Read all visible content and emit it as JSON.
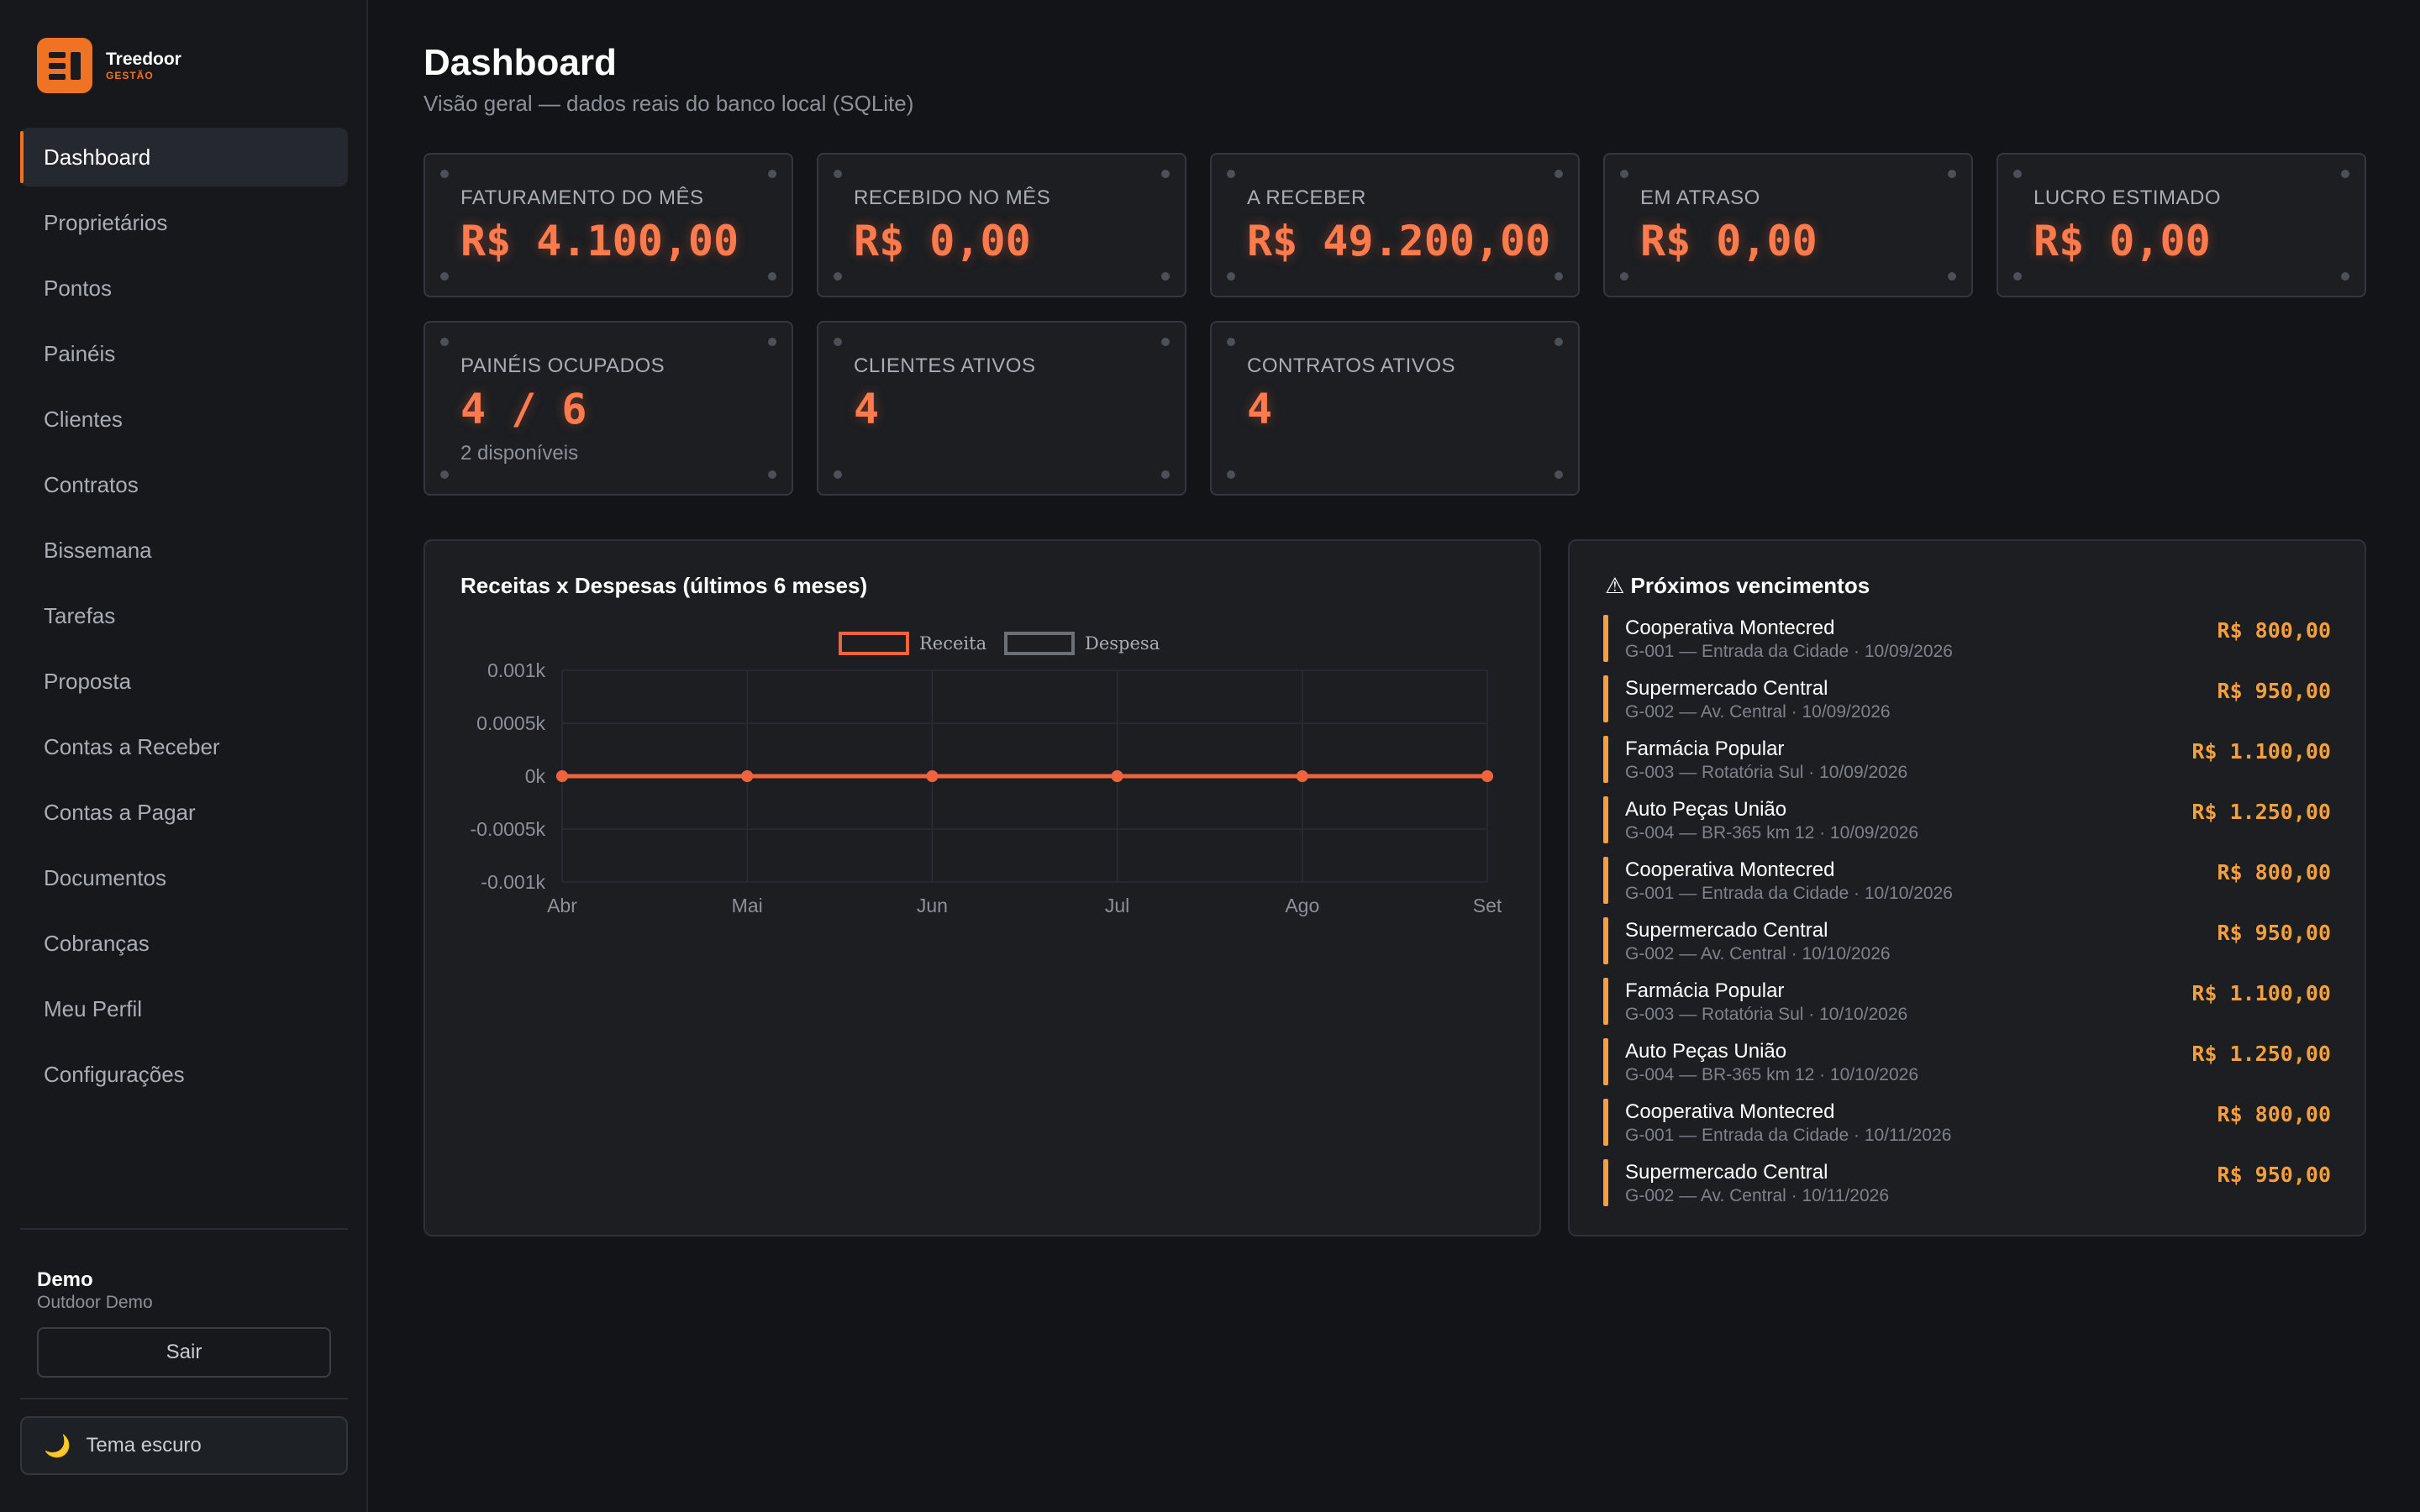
{
  "brand": {
    "name": "Treedoor",
    "sub": "GESTÃO"
  },
  "nav": {
    "items": [
      {
        "label": "Dashboard",
        "active": true
      },
      {
        "label": "Proprietários"
      },
      {
        "label": "Pontos"
      },
      {
        "label": "Painéis"
      },
      {
        "label": "Clientes"
      },
      {
        "label": "Contratos"
      },
      {
        "label": "Bissemana"
      },
      {
        "label": "Tarefas"
      },
      {
        "label": "Proposta"
      },
      {
        "label": "Contas a Receber"
      },
      {
        "label": "Contas a Pagar"
      },
      {
        "label": "Documentos"
      },
      {
        "label": "Cobranças"
      },
      {
        "label": "Meu Perfil"
      },
      {
        "label": "Configurações"
      }
    ]
  },
  "user": {
    "name": "Demo",
    "org": "Outdoor Demo",
    "logout_label": "Sair"
  },
  "theme": {
    "label": "Tema escuro",
    "icon": "moon-icon"
  },
  "header": {
    "title": "Dashboard",
    "subtitle": "Visão geral — dados reais do banco local (SQLite)"
  },
  "kpis": [
    {
      "label": "FATURAMENTO DO MÊS",
      "value": "R$ 4.100,00"
    },
    {
      "label": "RECEBIDO NO MÊS",
      "value": "R$ 0,00"
    },
    {
      "label": "A RECEBER",
      "value": "R$ 49.200,00"
    },
    {
      "label": "EM ATRASO",
      "value": "R$ 0,00"
    },
    {
      "label": "LUCRO ESTIMADO",
      "value": "R$ 0,00"
    },
    {
      "label": "PAINÉIS OCUPADOS",
      "value": "4 / 6",
      "note": "2 disponíveis"
    },
    {
      "label": "CLIENTES ATIVOS",
      "value": "4"
    },
    {
      "label": "CONTRATOS ATIVOS",
      "value": "4"
    }
  ],
  "chart_panel": {
    "title": "Receitas x Despesas (últimos 6 meses)"
  },
  "chart_data": {
    "type": "line",
    "categories": [
      "Abr",
      "Mai",
      "Jun",
      "Jul",
      "Ago",
      "Set"
    ],
    "series": [
      {
        "name": "Receita",
        "values": [
          0,
          0,
          0,
          0,
          0,
          0
        ],
        "color": "#f0633c"
      },
      {
        "name": "Despesa",
        "values": [
          0,
          0,
          0,
          0,
          0,
          0
        ],
        "color": "#6b6f76"
      }
    ],
    "yticks": [
      "0.001k",
      "0.0005k",
      "0k",
      "-0.0005k",
      "-0.001k"
    ],
    "ylim": [
      -0.001,
      0.001
    ],
    "grid": true,
    "legend_position": "top"
  },
  "due_panel": {
    "title": "⚠ Próximos vencimentos"
  },
  "due_items": [
    {
      "name": "Cooperativa Montecred",
      "detail": "G-001 — Entrada da Cidade · 10/09/2026",
      "amount": "R$ 800,00"
    },
    {
      "name": "Supermercado Central",
      "detail": "G-002 — Av. Central · 10/09/2026",
      "amount": "R$ 950,00"
    },
    {
      "name": "Farmácia Popular",
      "detail": "G-003 — Rotatória Sul · 10/09/2026",
      "amount": "R$ 1.100,00"
    },
    {
      "name": "Auto Peças União",
      "detail": "G-004 — BR-365 km 12 · 10/09/2026",
      "amount": "R$ 1.250,00"
    },
    {
      "name": "Cooperativa Montecred",
      "detail": "G-001 — Entrada da Cidade · 10/10/2026",
      "amount": "R$ 800,00"
    },
    {
      "name": "Supermercado Central",
      "detail": "G-002 — Av. Central · 10/10/2026",
      "amount": "R$ 950,00"
    },
    {
      "name": "Farmácia Popular",
      "detail": "G-003 — Rotatória Sul · 10/10/2026",
      "amount": "R$ 1.100,00"
    },
    {
      "name": "Auto Peças União",
      "detail": "G-004 — BR-365 km 12 · 10/10/2026",
      "amount": "R$ 1.250,00"
    },
    {
      "name": "Cooperativa Montecred",
      "detail": "G-001 — Entrada da Cidade · 10/11/2026",
      "amount": "R$ 800,00"
    },
    {
      "name": "Supermercado Central",
      "detail": "G-002 — Av. Central · 10/11/2026",
      "amount": "R$ 950,00"
    }
  ],
  "colors": {
    "accent": "#f07324",
    "value": "#ff7a4d",
    "due": "#f5a03c"
  }
}
